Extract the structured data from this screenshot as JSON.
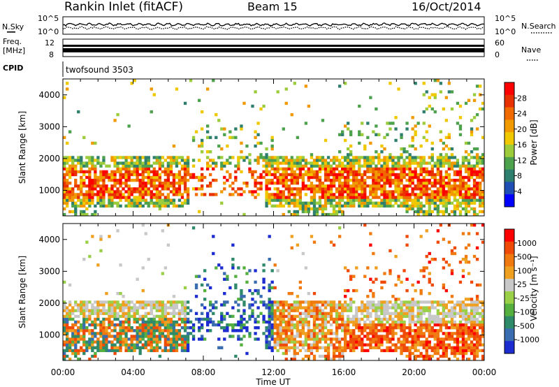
{
  "header": {
    "station": "Rankin Inlet (fitACF)",
    "beam": "Beam 15",
    "date": "16/Oct/2014"
  },
  "top_panels": {
    "nsky_label": "N.Sky",
    "nsky_ticks": [
      "10^5",
      "10^0"
    ],
    "nsearch_label": "N.Search",
    "nsearch_ticks": [
      "10^5",
      "10^0"
    ],
    "freq_label_1": "Freq.",
    "freq_label_2": "[MHz]",
    "freq_ticks": [
      "12",
      "8"
    ],
    "nave_label": "Nave",
    "nave_ticks": [
      "60",
      "0"
    ],
    "cpid_label": "CPID",
    "cpid_value": "twofsound 3503"
  },
  "colors": {
    "power": [
      "#0000ff",
      "#1f4fb4",
      "#2e7f6e",
      "#4ea24e",
      "#9ccc3c",
      "#f0c800",
      "#f09a00",
      "#f06a00",
      "#e83000",
      "#ff0000"
    ],
    "velocity": [
      "#1c2cd0",
      "#3a6cb0",
      "#2e8a68",
      "#55b040",
      "#9ad048",
      "#c8c8c8",
      "#f0a020",
      "#f07a10",
      "#f04a08",
      "#ff0000"
    ]
  },
  "chart_data": [
    {
      "type": "heatmap",
      "name": "power",
      "ylabel": "Slant Range [km]",
      "ylim": [
        200,
        4500
      ],
      "yticks": [
        "1000",
        "2000",
        "3000",
        "4000"
      ],
      "xlim": [
        0,
        24
      ],
      "colorbar_label": "Power [dB]",
      "colorbar_ticks": [
        "28",
        "24",
        "20",
        "16",
        "12",
        "8",
        "4"
      ],
      "colorbar_range": [
        0,
        32
      ]
    },
    {
      "type": "heatmap",
      "name": "velocity",
      "ylabel": "Slant Range [km]",
      "ylim": [
        200,
        4500
      ],
      "yticks": [
        "1000",
        "2000",
        "3000",
        "4000"
      ],
      "xlim": [
        0,
        24
      ],
      "xlabel": "Time UT",
      "xticks": [
        "00:00",
        "04:00",
        "08:00",
        "12:00",
        "16:00",
        "20:00",
        "00:00"
      ],
      "colorbar_label": "Velocity [m s⁻¹]",
      "colorbar_ticks": [
        "1000",
        "500",
        "100",
        "25",
        "-25",
        "-100",
        "-500",
        "-1000"
      ]
    }
  ]
}
